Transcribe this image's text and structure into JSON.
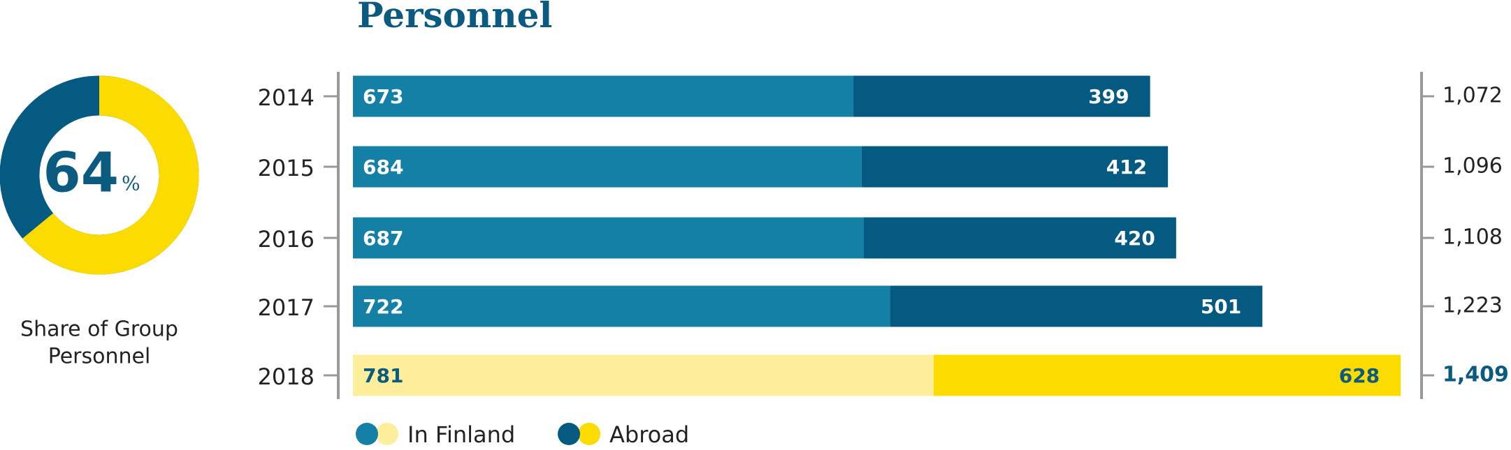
{
  "chart_data": {
    "type": "stacked-bar-horizontal",
    "title": "Personnel",
    "categories": [
      "2014",
      "2015",
      "2016",
      "2017",
      "2018"
    ],
    "series": [
      {
        "name": "In Finland",
        "values": [
          673,
          684,
          687,
          722,
          781
        ],
        "colors": [
          "#1480a5",
          "#1480a5",
          "#1480a5",
          "#1480a5",
          "#fdee9b"
        ],
        "label_colors": [
          "#ffffff",
          "#ffffff",
          "#ffffff",
          "#ffffff",
          "#0b5a80"
        ]
      },
      {
        "name": "Abroad",
        "values": [
          399,
          412,
          420,
          501,
          628
        ],
        "colors": [
          "#045a80",
          "#045a80",
          "#045a80",
          "#045a80",
          "#fcdc00"
        ],
        "label_colors": [
          "#ffffff",
          "#ffffff",
          "#ffffff",
          "#ffffff",
          "#0b5a80"
        ]
      }
    ],
    "totals": [
      1072,
      1096,
      1108,
      1223,
      1409
    ],
    "total_labels": [
      "1,072",
      "1,096",
      "1,108",
      "1,223",
      "1,409"
    ],
    "total_colors": [
      "#222222",
      "#222222",
      "#222222",
      "#222222",
      "#0b5a80"
    ],
    "xlim": [
      0,
      1500
    ],
    "grid": false,
    "donut": {
      "value": 64,
      "unit": "%",
      "label_lines": [
        "Share of Group",
        "Personnel"
      ],
      "color": "#fcdc00",
      "rest_color": "#045a80"
    }
  }
}
